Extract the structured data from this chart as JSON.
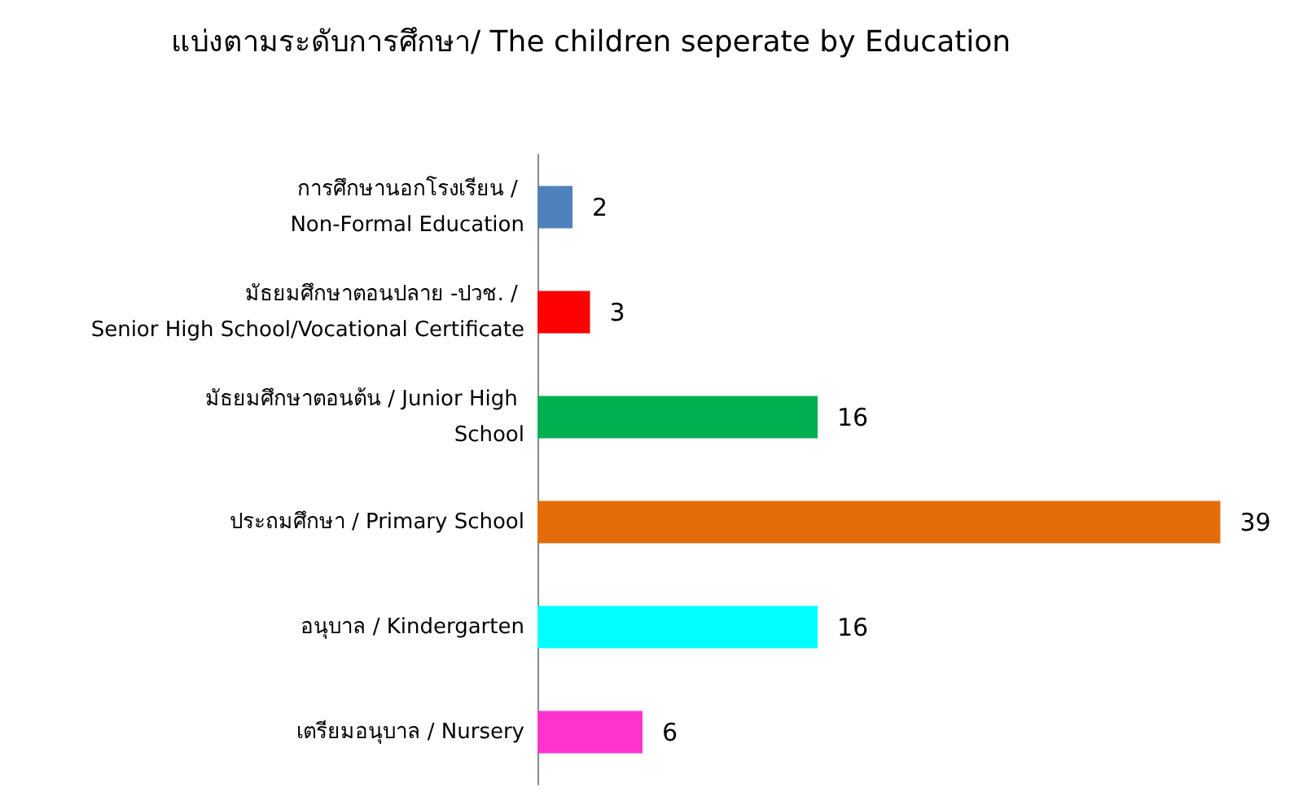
{
  "chart_data": {
    "type": "bar",
    "orientation": "horizontal",
    "title": "แบ่งตามระดับการศึกษา/ The children seperate by Education",
    "categories": [
      "การศึกษานอกโรงเรียน / Non-Formal Education",
      "มัธยมศึกษาตอนปลาย -ปวช. / Senior High School/Vocational Certificate",
      "มัธยมศึกษาตอนต้น / Junior High School",
      "ประถมศึกษา / Primary School",
      "อนุบาล / Kindergarten",
      "เตรียมอนุบาล / Nursery"
    ],
    "values": [
      2,
      3,
      16,
      39,
      16,
      6
    ],
    "colors": [
      "#4f81bd",
      "#ff0000",
      "#00b050",
      "#e36c09",
      "#00ffff",
      "#ff33cc"
    ],
    "data_labels": true
  }
}
